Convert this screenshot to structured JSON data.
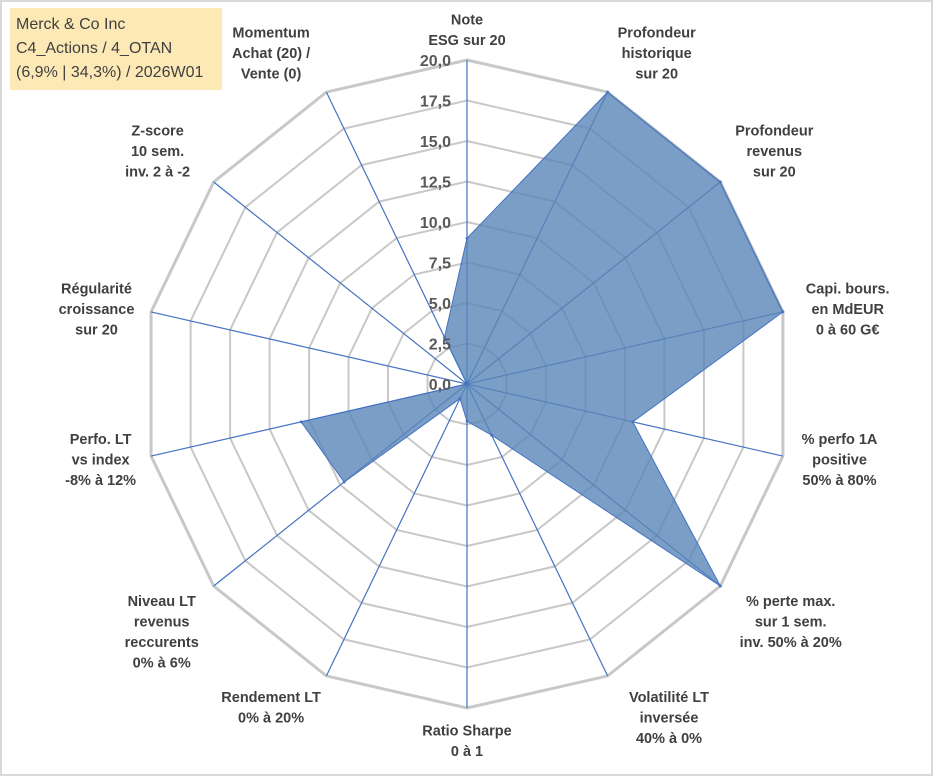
{
  "chart_data": {
    "type": "radar",
    "title_lines": [
      "Merck & Co Inc",
      "C4_Actions / 4_OTAN",
      "(6,9% | 34,3%) / 2026W01"
    ],
    "axes": [
      [
        "Note",
        "ESG sur 20"
      ],
      [
        "Profondeur",
        "historique",
        "sur 20"
      ],
      [
        "Profondeur",
        "revenus",
        "sur 20"
      ],
      [
        "Capi. bours.",
        "en MdEUR",
        "0 à 60 G€"
      ],
      [
        "% perfo 1A",
        "positive",
        "50% à 80%"
      ],
      [
        "% perte max.",
        "sur 1 sem.",
        "inv. 50% à 20%"
      ],
      [
        "Volatilité LT",
        "inversée",
        "40% à 0%"
      ],
      [
        "Ratio Sharpe",
        "0 à 1"
      ],
      [
        "Rendement LT",
        "0% à 20%"
      ],
      [
        "Niveau LT",
        "revenus",
        "reccurents",
        "0% à 6%"
      ],
      [
        "Perfo. LT",
        "vs index",
        "-8% à 12%"
      ],
      [
        "Régularité",
        "croissance",
        "sur 20"
      ],
      [
        "Z-score",
        "10 sem.",
        "inv. 2 à -2"
      ],
      [
        "Momentum",
        "Achat (20) /",
        "Vente (0)"
      ]
    ],
    "values": [
      9,
      20,
      20,
      20,
      10.5,
      20,
      3.5,
      2.3,
      1.0,
      9.7,
      10.5,
      0,
      0,
      3.2
    ],
    "range": [
      0,
      20
    ],
    "tick_labels": [
      "0,0",
      "2,5",
      "5,0",
      "7,5",
      "10,0",
      "12,5",
      "15,0",
      "17,5",
      "20,0"
    ],
    "fill_color": "#5a86b8",
    "stroke_color": "#4472c4",
    "grid_color": "#c8c8c8",
    "spoke_color": "#4472c4"
  }
}
